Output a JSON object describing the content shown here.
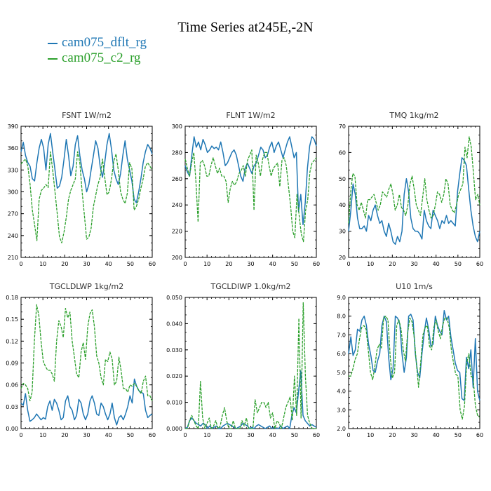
{
  "figure": {
    "title": "Time Series at245E,-2N",
    "legend": [
      {
        "label": "cam075_dflt_rg",
        "color": "#1f77b4"
      },
      {
        "label": "cam075_c2_rg",
        "color": "#2ca02c"
      }
    ]
  },
  "chart_data": [
    {
      "type": "line",
      "title": "FSNT   1W/m2",
      "xlim": [
        0,
        60
      ],
      "ylim": [
        210,
        390
      ],
      "xticks": [
        0,
        10,
        20,
        30,
        40,
        50,
        60
      ],
      "yticks": [
        210,
        240,
        270,
        300,
        330,
        360,
        390
      ],
      "ytick_labels": [
        "210",
        "240",
        "270",
        "300",
        "330",
        "360",
        "390"
      ],
      "series": [
        {
          "name": "cam075_dflt_rg",
          "color": "#1f77b4",
          "values": [
            355,
            368,
            350,
            340,
            335,
            318,
            315,
            340,
            360,
            372,
            360,
            330,
            365,
            380,
            355,
            330,
            305,
            308,
            320,
            345,
            372,
            350,
            322,
            335,
            365,
            377,
            350,
            330,
            318,
            300,
            310,
            330,
            350,
            370,
            360,
            335,
            320,
            340,
            365,
            380,
            358,
            330,
            318,
            310,
            325,
            350,
            370,
            345,
            330,
            315,
            290,
            285,
            300,
            318,
            340,
            355,
            365,
            360,
            352
          ]
        },
        {
          "name": "cam075_c2_rg",
          "color": "#2ca02c",
          "values": [
            338,
            342,
            345,
            335,
            310,
            275,
            255,
            233,
            290,
            302,
            305,
            310,
            306,
            355,
            330,
            300,
            270,
            238,
            230,
            245,
            265,
            290,
            302,
            310,
            318,
            355,
            340,
            300,
            268,
            235,
            238,
            250,
            280,
            295,
            310,
            320,
            345,
            320,
            296,
            300,
            318,
            342,
            352,
            330,
            300,
            290,
            284,
            298,
            340,
            332,
            275,
            280,
            290,
            305,
            318,
            335,
            340,
            335,
            330
          ]
        }
      ]
    },
    {
      "type": "line",
      "title": "FLNT   1W/m2",
      "xlim": [
        0,
        60
      ],
      "ylim": [
        200,
        300
      ],
      "xticks": [
        0,
        10,
        20,
        30,
        40,
        50,
        60
      ],
      "yticks": [
        200,
        220,
        240,
        260,
        280,
        300
      ],
      "ytick_labels": [
        "200",
        "220",
        "240",
        "260",
        "280",
        "300"
      ],
      "series": [
        {
          "name": "cam075_dflt_rg",
          "color": "#1f77b4",
          "values": [
            270,
            265,
            262,
            278,
            292,
            284,
            288,
            282,
            290,
            286,
            280,
            282,
            285,
            283,
            284,
            282,
            288,
            280,
            270,
            272,
            276,
            280,
            282,
            278,
            270,
            262,
            258,
            268,
            272,
            268,
            264,
            270,
            272,
            278,
            284,
            282,
            276,
            278,
            284,
            288,
            280,
            285,
            288,
            282,
            276,
            282,
            288,
            292,
            284,
            276,
            280,
            235,
            248,
            225,
            242,
            268,
            285,
            292,
            290,
            285
          ]
        },
        {
          "name": "cam075_c2_rg",
          "color": "#2ca02c",
          "values": [
            275,
            268,
            262,
            272,
            280,
            258,
            227,
            272,
            274,
            270,
            262,
            262,
            270,
            276,
            270,
            264,
            268,
            262,
            262,
            258,
            242,
            253,
            258,
            255,
            258,
            264,
            266,
            270,
            262,
            274,
            278,
            282,
            236,
            278,
            272,
            262,
            275,
            280,
            280,
            270,
            262,
            268,
            270,
            272,
            254,
            274,
            276,
            270,
            255,
            240,
            220,
            215,
            248,
            232,
            218,
            212,
            236,
            244,
            265,
            272,
            274,
            276
          ]
        }
      ]
    },
    {
      "type": "line",
      "title": "TMQ   1kg/m2",
      "xlim": [
        0,
        60
      ],
      "ylim": [
        20,
        70
      ],
      "xticks": [
        0,
        10,
        20,
        30,
        40,
        50,
        60
      ],
      "yticks": [
        20,
        30,
        40,
        50,
        60,
        70
      ],
      "ytick_labels": [
        "20",
        "30",
        "40",
        "50",
        "60",
        "70"
      ],
      "series": [
        {
          "name": "cam075_dflt_rg",
          "color": "#1f77b4",
          "values": [
            30,
            38,
            48,
            44,
            35,
            31,
            31,
            32,
            30,
            36,
            34,
            38,
            40,
            36,
            33,
            34,
            30,
            28,
            33,
            30,
            26,
            25,
            28,
            26,
            30,
            44,
            50,
            45,
            35,
            31,
            30,
            30,
            29,
            27,
            38,
            34,
            32,
            31,
            38,
            36,
            34,
            31,
            34,
            33,
            36,
            33,
            34,
            33,
            32,
            45,
            52,
            58,
            57,
            55,
            46,
            38,
            32,
            28,
            26,
            30
          ]
        },
        {
          "name": "cam075_c2_rg",
          "color": "#2ca02c",
          "values": [
            33,
            45,
            52,
            51,
            40,
            38,
            41,
            38,
            35,
            42,
            42,
            43,
            44,
            41,
            38,
            40,
            45,
            44,
            43,
            46,
            48,
            44,
            38,
            40,
            44,
            39,
            38,
            36,
            40,
            48,
            51,
            46,
            40,
            38,
            36,
            43,
            50,
            42,
            38,
            35,
            36,
            40,
            45,
            44,
            41,
            44,
            50,
            48,
            40,
            38,
            37,
            40,
            44,
            46,
            48,
            62,
            58,
            66,
            62,
            52,
            42,
            44,
            40
          ]
        }
      ]
    },
    {
      "type": "line",
      "title": "TGCLDLWP   1kg/m2",
      "xlim": [
        0,
        60
      ],
      "ylim": [
        0,
        0.18
      ],
      "xticks": [
        0,
        10,
        20,
        30,
        40,
        50,
        60
      ],
      "yticks": [
        0,
        0.03,
        0.06,
        0.09,
        0.12,
        0.15,
        0.18
      ],
      "ytick_labels": [
        "0.00",
        "0.03",
        "0.06",
        "0.09",
        "0.12",
        "0.15",
        "0.18"
      ],
      "series": [
        {
          "name": "cam075_dflt_rg",
          "color": "#1f77b4",
          "values": [
            0.035,
            0.032,
            0.048,
            0.025,
            0.01,
            0.012,
            0.015,
            0.02,
            0.016,
            0.012,
            0.015,
            0.013,
            0.03,
            0.038,
            0.025,
            0.04,
            0.035,
            0.025,
            0.012,
            0.015,
            0.038,
            0.045,
            0.03,
            0.025,
            0.012,
            0.018,
            0.04,
            0.035,
            0.02,
            0.012,
            0.02,
            0.038,
            0.045,
            0.035,
            0.02,
            0.018,
            0.035,
            0.03,
            0.02,
            0.012,
            0.02,
            0.035,
            0.015,
            0.005,
            0.015,
            0.018,
            0.012,
            0.02,
            0.03,
            0.045,
            0.035,
            0.068,
            0.058,
            0.052,
            0.05,
            0.048,
            0.025,
            0.015,
            0.018,
            0.02
          ]
        },
        {
          "name": "cam075_c2_rg",
          "color": "#2ca02c",
          "values": [
            0.055,
            0.062,
            0.06,
            0.055,
            0.038,
            0.05,
            0.12,
            0.17,
            0.155,
            0.12,
            0.092,
            0.085,
            0.08,
            0.08,
            0.075,
            0.065,
            0.12,
            0.148,
            0.14,
            0.125,
            0.165,
            0.152,
            0.16,
            0.12,
            0.098,
            0.075,
            0.07,
            0.105,
            0.118,
            0.095,
            0.14,
            0.158,
            0.163,
            0.14,
            0.1,
            0.09,
            0.07,
            0.06,
            0.095,
            0.092,
            0.105,
            0.095,
            0.06,
            0.065,
            0.098,
            0.08,
            0.055,
            0.055,
            0.05,
            0.06,
            0.058,
            0.062,
            0.058,
            0.052,
            0.048,
            0.065,
            0.072,
            0.045,
            0.045,
            0.038
          ]
        }
      ]
    },
    {
      "type": "line",
      "title": "TGCLDIWP   1.0kg/m2",
      "xlim": [
        0,
        60
      ],
      "ylim": [
        0,
        0.05
      ],
      "xticks": [
        0,
        10,
        20,
        30,
        40,
        50,
        60
      ],
      "yticks": [
        0,
        0.01,
        0.02,
        0.03,
        0.04,
        0.05
      ],
      "ytick_labels": [
        "0.000",
        "0.010",
        "0.020",
        "0.030",
        "0.040",
        "0.050"
      ],
      "series": [
        {
          "name": "cam075_dflt_rg",
          "color": "#1f77b4",
          "values": [
            0.0,
            0.0005,
            0.003,
            0.004,
            0.003,
            0.002,
            0.0015,
            0.001,
            0.002,
            0.0015,
            0.0,
            0.001,
            0.0,
            0.0005,
            0.001,
            0.0,
            0.0,
            0.001,
            0.0015,
            0.002,
            0.0015,
            0.001,
            0.0005,
            0.0,
            0.0005,
            0.001,
            0.002,
            0.0015,
            0.001,
            0.0,
            0.0005,
            0.0,
            0.001,
            0.0015,
            0.001,
            0.0005,
            0.0,
            0.0005,
            0.001,
            0.0,
            0.0005,
            0.0,
            0.0,
            0.001,
            0.0,
            0.0005,
            0.001,
            0.0,
            0.005,
            0.008,
            0.006,
            0.014,
            0.022,
            0.005,
            0.003,
            0.002,
            0.001,
            0.0015,
            0.001,
            0.0005
          ]
        },
        {
          "name": "cam075_c2_rg",
          "color": "#2ca02c",
          "values": [
            0.0,
            0.0,
            0.003,
            0.005,
            0.003,
            0.001,
            0.0,
            0.018,
            0.004,
            0.0,
            0.002,
            0.004,
            0.0,
            0.001,
            0.003,
            0.0,
            0.001,
            0.005,
            0.008,
            0.003,
            0.0,
            0.0,
            0.003,
            0.0,
            0.0,
            0.0,
            0.003,
            0.001,
            0.004,
            0.0,
            0.0,
            0.0,
            0.011,
            0.006,
            0.008,
            0.01,
            0.01,
            0.008,
            0.01,
            0.004,
            0.006,
            0.0,
            0.003,
            0.002,
            0.0,
            0.004,
            0.008,
            0.01,
            0.012,
            0.003,
            0.02,
            0.005,
            0.042,
            0.004,
            0.048,
            0.02,
            0.005,
            0.002,
            0.0,
            0.0,
            0.0
          ]
        }
      ]
    },
    {
      "type": "line",
      "title": "U10   1m/s",
      "xlim": [
        0,
        60
      ],
      "ylim": [
        2,
        9
      ],
      "xticks": [
        0,
        10,
        20,
        30,
        40,
        50,
        60
      ],
      "yticks": [
        2,
        3,
        4,
        5,
        6,
        7,
        8,
        9
      ],
      "ytick_labels": [
        "2.0",
        "3.0",
        "4.0",
        "5.0",
        "6.0",
        "7.0",
        "8.0",
        "9.0"
      ],
      "series": [
        {
          "name": "cam075_dflt_rg",
          "color": "#1f77b4",
          "values": [
            6.0,
            6.9,
            5.9,
            6.2,
            7.3,
            7.2,
            7.8,
            8.0,
            7.5,
            6.5,
            5.9,
            5.1,
            5.0,
            5.6,
            6.0,
            7.5,
            8.0,
            7.7,
            5.8,
            4.6,
            5.2,
            8.0,
            7.9,
            7.6,
            6.0,
            5.0,
            5.8,
            8.0,
            8.1,
            7.8,
            6.0,
            5.0,
            4.7,
            6.0,
            7.1,
            7.9,
            7.3,
            6.4,
            6.5,
            8.0,
            7.5,
            7.2,
            7.0,
            8.3,
            7.8,
            8.0,
            6.9,
            6.2,
            5.5,
            5.1,
            5.0,
            3.6,
            3.5,
            5.8,
            5.2,
            6.2,
            4.2,
            6.8,
            4.0,
            3.5
          ]
        },
        {
          "name": "cam075_c2_rg",
          "color": "#2ca02c",
          "values": [
            4.8,
            4.8,
            5.2,
            5.7,
            6.0,
            6.8,
            7.4,
            7.5,
            7.3,
            6.2,
            5.0,
            4.6,
            5.3,
            6.2,
            6.5,
            6.3,
            7.9,
            8.0,
            7.8,
            5.9,
            4.7,
            5.0,
            7.5,
            7.8,
            7.3,
            6.2,
            5.6,
            7.1,
            7.9,
            7.7,
            6.9,
            5.5,
            4.2,
            5.6,
            7.0,
            7.4,
            7.5,
            6.4,
            6.2,
            7.4,
            7.8,
            7.2,
            6.8,
            7.5,
            7.9,
            7.9,
            7.4,
            6.2,
            5.5,
            4.9,
            4.8,
            3.0,
            2.5,
            3.2,
            5.5,
            6.0,
            4.8,
            4.7,
            3.2,
            2.7,
            2.6
          ]
        }
      ]
    }
  ]
}
